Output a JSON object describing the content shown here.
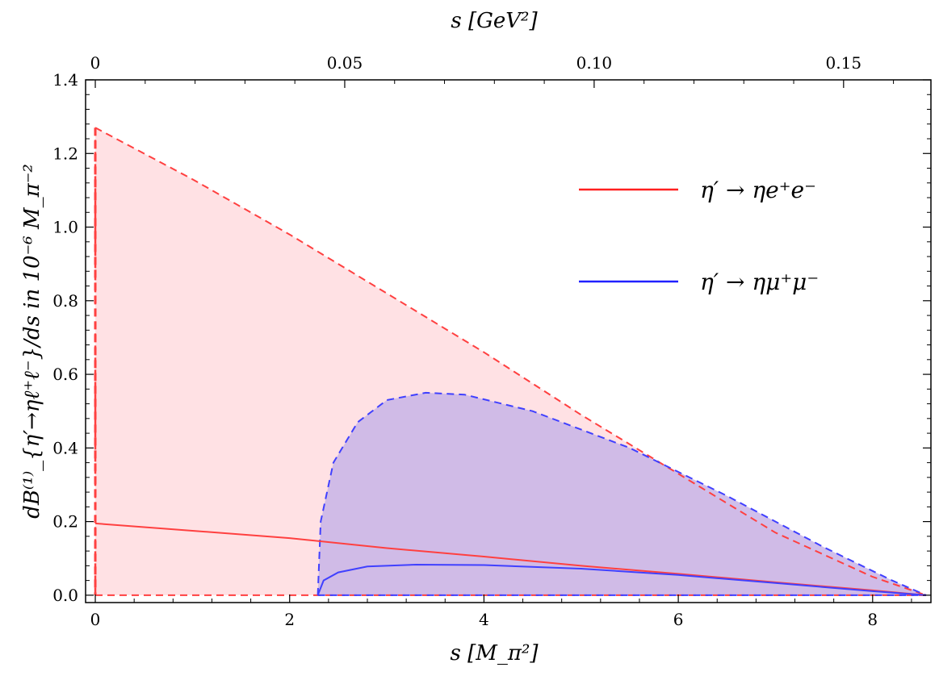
{
  "chart_data": {
    "type": "area",
    "xlabel": "s [M_π²]",
    "x2label": "s [GeV²]",
    "ylabel": "dB⁽¹⁾_{η′→ηℓ⁺ℓ⁻}/ds in 10⁻⁶ M_π⁻²",
    "xlim": [
      -0.1,
      8.6
    ],
    "ylim": [
      -0.02,
      1.4
    ],
    "xticks": [
      0,
      2,
      4,
      6,
      8
    ],
    "xtick_labels": [
      "0",
      "2",
      "4",
      "6",
      "8"
    ],
    "x2ticks_s": [
      0,
      2.567,
      5.134,
      7.701
    ],
    "x2tick_labels": [
      "0",
      "0.05",
      "0.10",
      "0.15"
    ],
    "yticks": [
      0.0,
      0.2,
      0.4,
      0.6,
      0.8,
      1.0,
      1.2,
      1.4
    ],
    "ytick_labels": [
      "0.0",
      "0.2",
      "0.4",
      "0.6",
      "0.8",
      "1.0",
      "1.2",
      "1.4"
    ],
    "legend_position": "top-right",
    "series": [
      {
        "name": "η′ → ηe⁺e⁻",
        "color": "#ff4040",
        "fill": "#ffe1e4",
        "central": {
          "x": [
            0,
            1,
            2,
            3,
            4,
            5,
            6,
            7,
            8,
            8.55
          ],
          "y": [
            0.195,
            0.175,
            0.155,
            0.128,
            0.105,
            0.08,
            0.058,
            0.035,
            0.013,
            0.0
          ]
        },
        "upper": {
          "x": [
            0,
            1,
            2,
            3,
            4,
            5,
            6,
            7,
            8,
            8.55
          ],
          "y": [
            1.27,
            1.13,
            0.98,
            0.82,
            0.66,
            0.49,
            0.33,
            0.17,
            0.05,
            0.0
          ]
        },
        "lower": {
          "x": [
            0,
            8.55
          ],
          "y": [
            0.0,
            0.0
          ]
        }
      },
      {
        "name": "η′ → ημ⁺μ⁻",
        "color": "#4040ff",
        "fill": "#c8b4e8",
        "central": {
          "x": [
            2.29,
            2.35,
            2.5,
            2.8,
            3.3,
            4.0,
            5.0,
            6.0,
            7.0,
            8.0,
            8.55
          ],
          "y": [
            0.0,
            0.04,
            0.062,
            0.078,
            0.083,
            0.082,
            0.072,
            0.055,
            0.033,
            0.011,
            0.0
          ]
        },
        "upper": {
          "x": [
            2.29,
            2.32,
            2.45,
            2.7,
            3.0,
            3.4,
            3.8,
            4.5,
            5.5,
            6.5,
            7.5,
            8.2,
            8.55
          ],
          "y": [
            0.0,
            0.2,
            0.36,
            0.47,
            0.53,
            0.55,
            0.545,
            0.5,
            0.4,
            0.27,
            0.13,
            0.04,
            0.0
          ]
        },
        "lower": {
          "x": [
            2.29,
            8.55
          ],
          "y": [
            0.0,
            0.0
          ]
        }
      }
    ]
  }
}
